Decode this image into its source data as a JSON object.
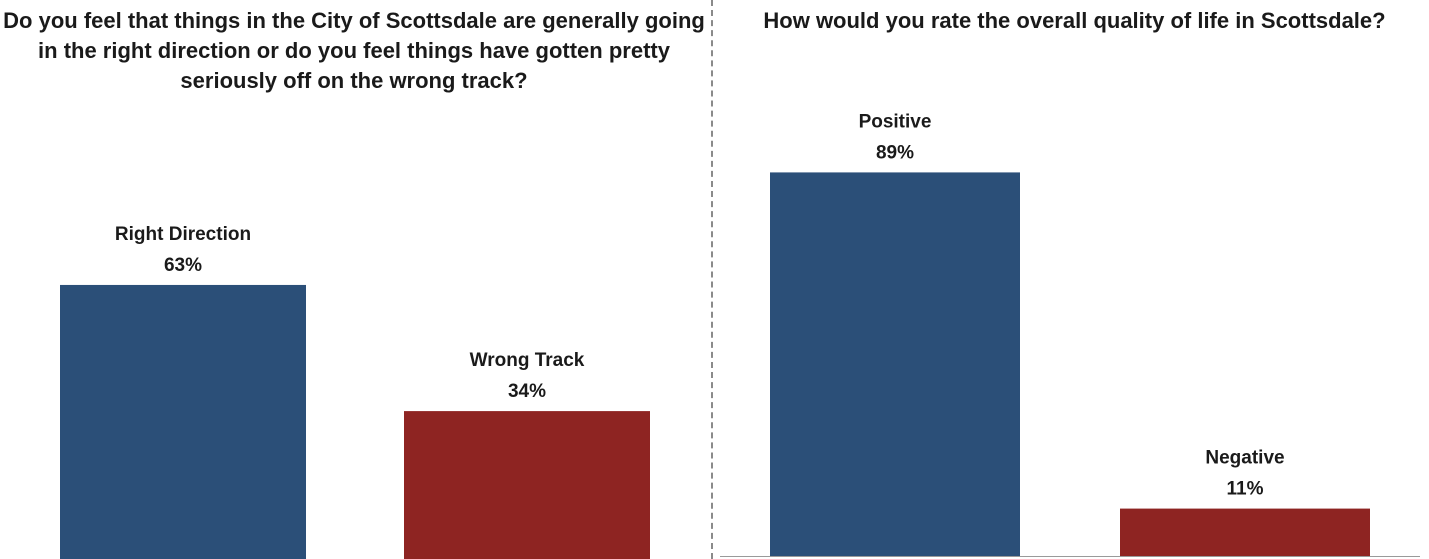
{
  "chart_data": [
    {
      "type": "bar",
      "title": "Do you feel that things in the City of Scottsdale are generally going in the right direction or do you feel things have gotten pretty seriously off on the wrong track?",
      "categories": [
        "Right Direction",
        "Wrong Track"
      ],
      "values": [
        63,
        34
      ],
      "value_labels": [
        "63%",
        "34%"
      ],
      "colors": [
        "#2b4f78",
        "#8e2422"
      ],
      "ylim": [
        0,
        100
      ],
      "grid": false
    },
    {
      "type": "bar",
      "title": "How would you rate the overall quality of life in Scottsdale?",
      "categories": [
        "Positive",
        "Negative"
      ],
      "values": [
        89,
        11
      ],
      "value_labels": [
        "89%",
        "11%"
      ],
      "colors": [
        "#2b4f78",
        "#8e2422"
      ],
      "ylim": [
        0,
        100
      ],
      "grid": false
    }
  ]
}
